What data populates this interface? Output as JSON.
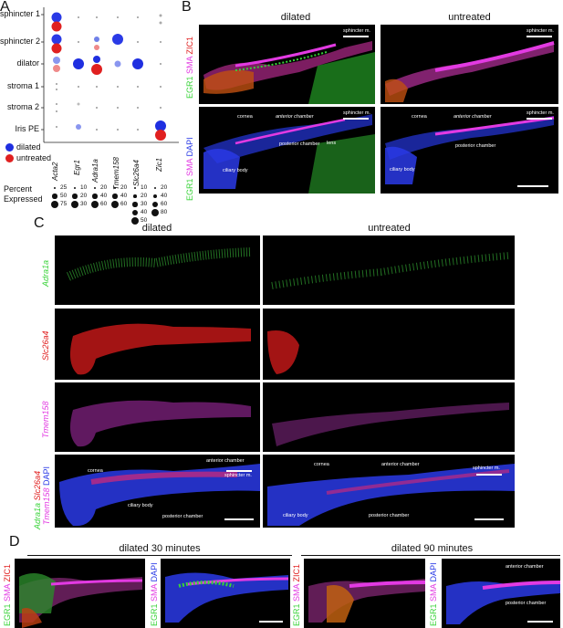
{
  "panels": {
    "A": {
      "label": "A",
      "rows": [
        "sphincter 1",
        "sphincter 2",
        "dilator",
        "stroma 1",
        "stroma 2",
        "Iris PE"
      ],
      "genes": [
        "Acta2",
        "Egr1",
        "Adra1a",
        "Tmem158",
        "Slc26a4",
        "Zic1"
      ],
      "legend": {
        "groups": [
          {
            "label": "dilated",
            "color": "#1f2fe0"
          },
          {
            "label": "untreated",
            "color": "#e02020"
          }
        ],
        "percent_title_1": "Percent",
        "percent_title_2": "Expressed",
        "size_scales": [
          [
            "25",
            "50",
            "75"
          ],
          [
            "10",
            "20",
            "30"
          ],
          [
            "20",
            "40",
            "60"
          ],
          [
            "20",
            "40",
            "60"
          ],
          [
            "10",
            "20",
            "30",
            "40",
            "50"
          ],
          [
            "20",
            "40",
            "60",
            "80"
          ]
        ]
      }
    },
    "B": {
      "label": "B",
      "cond_left": "dilated",
      "cond_right": "untreated",
      "row1_stain": [
        "EGR1",
        "SMA",
        "ZIC1"
      ],
      "row2_stain": [
        "EGR1",
        "SMA",
        "DAPI"
      ],
      "annot": {
        "sphincter": "sphincter m.",
        "cornea": "cornea",
        "anterior": "anterior chamber",
        "posterior": "posterior chamber",
        "lens": "lens",
        "ciliary": "ciliary body"
      }
    },
    "C": {
      "label": "C",
      "cond_left": "dilated",
      "cond_right": "untreated",
      "rows": [
        "Adra1a",
        "Slc26a4",
        "Tmem158"
      ],
      "merge_label": [
        "Adra1a",
        "Slc26a4",
        "Tmem158",
        "DAPI"
      ],
      "annot": {
        "cornea": "cornea",
        "anterior": "anterior chamber",
        "sphincter": "sphincter m.",
        "ciliary": "ciliary body",
        "posterior": "posterior chamber"
      }
    },
    "D": {
      "label": "D",
      "cond_left": "dilated 30 minutes",
      "cond_right": "dilated 90 minutes",
      "stain_a": [
        "EGR1",
        "SMA",
        "ZIC1"
      ],
      "stain_b": [
        "EGR1",
        "SMA",
        "DAPI"
      ],
      "annot": {
        "anterior": "anterior chamber",
        "posterior": "posterior chamber"
      }
    }
  },
  "colors": {
    "green": "#39d339",
    "magenta": "#e23ae2",
    "red": "#e02020",
    "blue": "#2a3ae6"
  }
}
